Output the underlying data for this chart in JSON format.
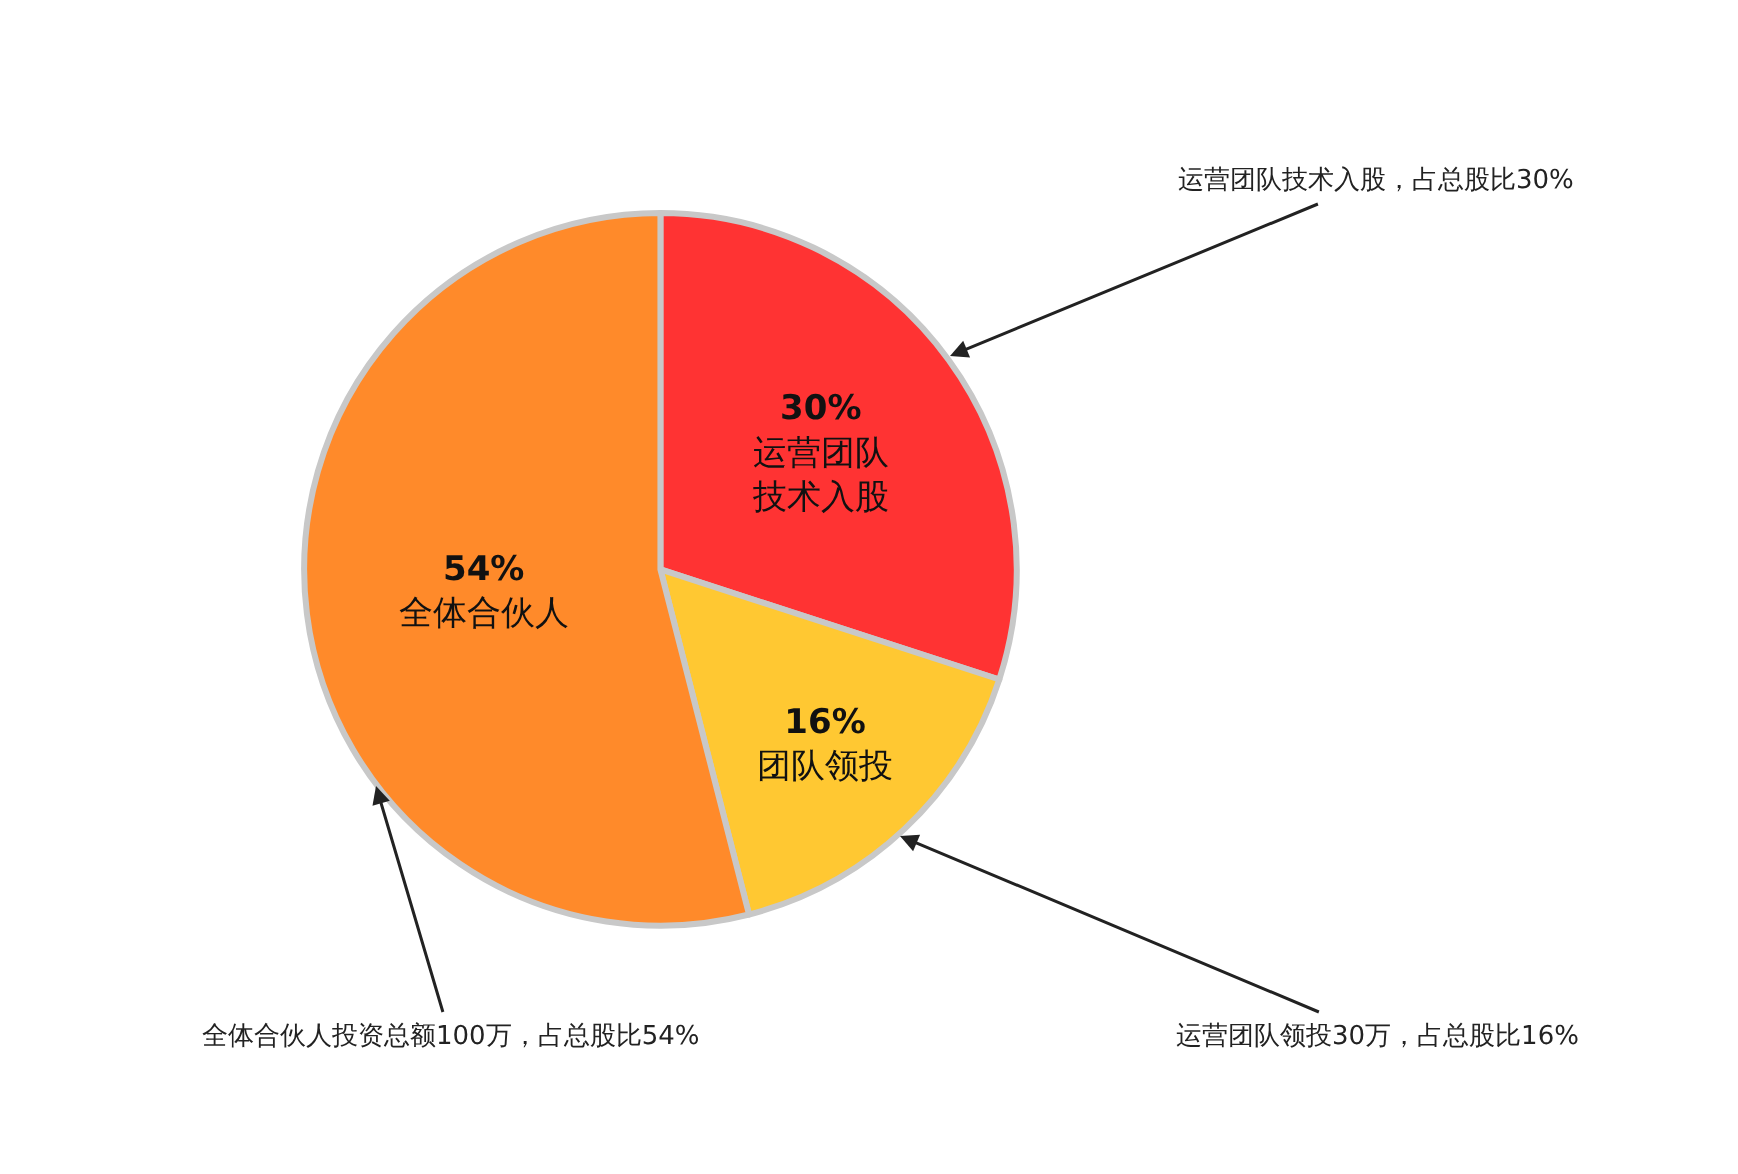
{
  "chart_data": {
    "type": "pie",
    "categories": [
      "运营团队技术入股",
      "团队领投",
      "全体合伙人"
    ],
    "values": [
      30,
      16,
      54
    ],
    "value_labels": [
      "30%",
      "16%",
      "54%"
    ],
    "colors": [
      "#ff3333",
      "#ffc832",
      "#ff8a2a"
    ],
    "legend": false,
    "annotations": [
      "运营团队技术入股，占总股比30%",
      "运营团队领投30万，占总股比16%",
      "全体合伙人投资总额100万，占总股比54%"
    ]
  }
}
